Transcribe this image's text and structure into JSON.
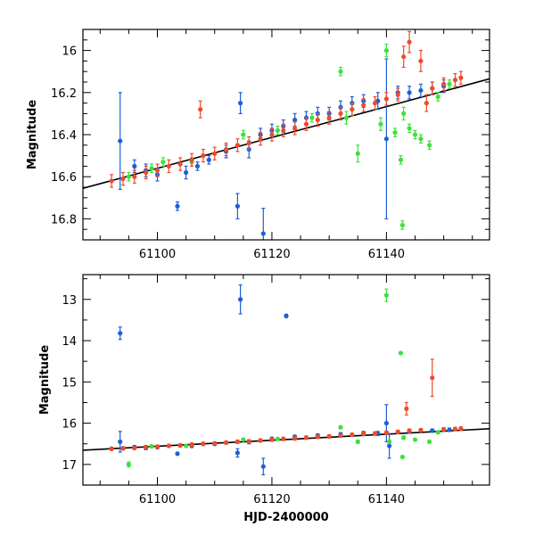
{
  "colors": {
    "blue": "#1f5fd6",
    "green": "#3ee03e",
    "red": "#ee4b2b",
    "trend": "#000000"
  },
  "chart_data": [
    {
      "type": "scatter",
      "title": "",
      "xlabel": "",
      "ylabel": "Magnitude",
      "xlim": [
        61087,
        61158
      ],
      "ylim": [
        16.9,
        15.9
      ],
      "xticks": [
        61100,
        61120,
        61140
      ],
      "xtick_labels": [
        "61100",
        "61120",
        "61140"
      ],
      "yticks": [
        16.0,
        16.2,
        16.4,
        16.6,
        16.8
      ],
      "ytick_labels": [
        "16",
        "16.2",
        "16.4",
        "16.6",
        "16.8"
      ],
      "trend": {
        "x": [
          61087,
          61158
        ],
        "y": [
          16.655,
          16.135
        ]
      },
      "series": [
        {
          "name": "blue",
          "color": "blue",
          "points": [
            [
              61093.5,
              16.43,
              0.23
            ],
            [
              61096,
              16.55,
              0.03
            ],
            [
              61098,
              16.57,
              0.03
            ],
            [
              61100,
              16.59,
              0.03
            ],
            [
              61103.5,
              16.74,
              0.02
            ],
            [
              61105,
              16.58,
              0.03
            ],
            [
              61107,
              16.55,
              0.02
            ],
            [
              61109,
              16.52,
              0.02
            ],
            [
              61112,
              16.48,
              0.03
            ],
            [
              61114,
              16.74,
              0.06
            ],
            [
              61114.5,
              16.25,
              0.05
            ],
            [
              61116,
              16.47,
              0.04
            ],
            [
              61118,
              16.4,
              0.03
            ],
            [
              61118.5,
              16.87,
              0.12
            ],
            [
              61120,
              16.38,
              0.03
            ],
            [
              61122,
              16.36,
              0.03
            ],
            [
              61124,
              16.33,
              0.03
            ],
            [
              61126,
              16.32,
              0.03
            ],
            [
              61128,
              16.3,
              0.03
            ],
            [
              61130,
              16.3,
              0.03
            ],
            [
              61132,
              16.27,
              0.03
            ],
            [
              61134,
              16.25,
              0.03
            ],
            [
              61136,
              16.24,
              0.03
            ],
            [
              61138.5,
              16.24,
              0.04
            ],
            [
              61140,
              16.42,
              0.38
            ],
            [
              61142,
              16.2,
              0.03
            ],
            [
              61144,
              16.2,
              0.03
            ],
            [
              61146,
              16.19,
              0.03
            ],
            [
              61148,
              16.18,
              0.03
            ],
            [
              61150,
              16.17,
              0.03
            ]
          ]
        },
        {
          "name": "green",
          "color": "green",
          "points": [
            [
              61095,
              16.6,
              0.02
            ],
            [
              61099,
              16.56,
              0.02
            ],
            [
              61101,
              16.53,
              0.02
            ],
            [
              61106,
              16.53,
              0.02
            ],
            [
              61115,
              16.4,
              0.02
            ],
            [
              61121,
              16.38,
              0.02
            ],
            [
              61127,
              16.32,
              0.02
            ],
            [
              61132,
              16.1,
              0.02
            ],
            [
              61133,
              16.32,
              0.03
            ],
            [
              61134,
              16.28,
              0.03
            ],
            [
              61135,
              16.49,
              0.04
            ],
            [
              61139,
              16.35,
              0.03
            ],
            [
              61140,
              16.0,
              0.03
            ],
            [
              61141.5,
              16.39,
              0.02
            ],
            [
              61142.5,
              16.52,
              0.02
            ],
            [
              61142.8,
              16.83,
              0.02
            ],
            [
              61143,
              16.3,
              0.03
            ],
            [
              61144,
              16.37,
              0.02
            ],
            [
              61145,
              16.4,
              0.02
            ],
            [
              61146,
              16.42,
              0.02
            ],
            [
              61147.5,
              16.45,
              0.02
            ],
            [
              61149,
              16.22,
              0.02
            ],
            [
              61151,
              16.16,
              0.02
            ]
          ]
        },
        {
          "name": "red",
          "color": "red",
          "points": [
            [
              61092,
              16.62,
              0.03
            ],
            [
              61094,
              16.61,
              0.03
            ],
            [
              61096,
              16.6,
              0.03
            ],
            [
              61098,
              16.58,
              0.03
            ],
            [
              61100,
              16.57,
              0.03
            ],
            [
              61102,
              16.55,
              0.03
            ],
            [
              61104,
              16.54,
              0.03
            ],
            [
              61106,
              16.52,
              0.03
            ],
            [
              61107.5,
              16.28,
              0.04
            ],
            [
              61108,
              16.5,
              0.03
            ],
            [
              61110,
              16.49,
              0.03
            ],
            [
              61112,
              16.47,
              0.03
            ],
            [
              61114,
              16.45,
              0.03
            ],
            [
              61116,
              16.44,
              0.03
            ],
            [
              61118,
              16.42,
              0.03
            ],
            [
              61120,
              16.4,
              0.03
            ],
            [
              61122,
              16.38,
              0.03
            ],
            [
              61124,
              16.37,
              0.03
            ],
            [
              61126,
              16.35,
              0.03
            ],
            [
              61128,
              16.33,
              0.03
            ],
            [
              61130,
              16.32,
              0.03
            ],
            [
              61132,
              16.3,
              0.03
            ],
            [
              61134,
              16.28,
              0.03
            ],
            [
              61136,
              16.26,
              0.03
            ],
            [
              61138,
              16.25,
              0.03
            ],
            [
              61140,
              16.23,
              0.03
            ],
            [
              61142,
              16.21,
              0.03
            ],
            [
              61143,
              16.03,
              0.05
            ],
            [
              61144,
              15.96,
              0.05
            ],
            [
              61146,
              16.05,
              0.05
            ],
            [
              61147,
              16.25,
              0.04
            ],
            [
              61148,
              16.18,
              0.03
            ],
            [
              61150,
              16.16,
              0.03
            ],
            [
              61152,
              16.14,
              0.03
            ],
            [
              61153,
              16.13,
              0.03
            ]
          ]
        }
      ]
    },
    {
      "type": "scatter",
      "title": "",
      "xlabel": "HJD-2400000",
      "ylabel": "Magnitude",
      "xlim": [
        61087,
        61158
      ],
      "ylim": [
        17.5,
        12.4
      ],
      "xticks": [
        61100,
        61120,
        61140
      ],
      "xtick_labels": [
        "61100",
        "61120",
        "61140"
      ],
      "yticks": [
        13,
        14,
        15,
        16,
        17
      ],
      "ytick_labels": [
        "13",
        "14",
        "15",
        "16",
        "17"
      ],
      "trend": {
        "x": [
          61087,
          61158
        ],
        "y": [
          16.655,
          16.135
        ]
      },
      "series": [
        {
          "name": "blue",
          "color": "blue",
          "points": [
            [
              61093.5,
              13.82,
              0.15
            ],
            [
              61093.5,
              16.45,
              0.25
            ],
            [
              61096,
              16.58,
              0.04
            ],
            [
              61098,
              16.6,
              0.04
            ],
            [
              61100,
              16.58,
              0.04
            ],
            [
              61103.5,
              16.74,
              0.03
            ],
            [
              61106,
              16.55,
              0.04
            ],
            [
              61110,
              16.5,
              0.04
            ],
            [
              61114,
              16.72,
              0.1
            ],
            [
              61114.5,
              13.0,
              0.35
            ],
            [
              61116,
              16.45,
              0.05
            ],
            [
              61118.5,
              17.05,
              0.2
            ],
            [
              61120,
              16.38,
              0.04
            ],
            [
              61122.5,
              13.4,
              0.04
            ],
            [
              61124,
              16.33,
              0.04
            ],
            [
              61128,
              16.3,
              0.04
            ],
            [
              61132,
              16.27,
              0.04
            ],
            [
              61136,
              16.24,
              0.04
            ],
            [
              61138.5,
              16.25,
              0.05
            ],
            [
              61140,
              16.0,
              0.45
            ],
            [
              61140.5,
              16.55,
              0.3
            ],
            [
              61144,
              16.2,
              0.04
            ],
            [
              61148,
              16.18,
              0.04
            ],
            [
              61151,
              16.16,
              0.04
            ]
          ]
        },
        {
          "name": "green",
          "color": "green",
          "points": [
            [
              61095,
              17.0,
              0.06
            ],
            [
              61099,
              16.56,
              0.03
            ],
            [
              61105,
              16.55,
              0.03
            ],
            [
              61115,
              16.4,
              0.03
            ],
            [
              61121,
              16.38,
              0.03
            ],
            [
              61132,
              16.1,
              0.03
            ],
            [
              61135,
              16.45,
              0.04
            ],
            [
              61140,
              12.9,
              0.15
            ],
            [
              61140.5,
              16.45,
              0.04
            ],
            [
              61142.5,
              14.3,
              0.03
            ],
            [
              61142.8,
              16.82,
              0.03
            ],
            [
              61143,
              16.35,
              0.04
            ],
            [
              61145,
              16.4,
              0.03
            ],
            [
              61147.5,
              16.45,
              0.03
            ],
            [
              61149,
              16.22,
              0.03
            ]
          ]
        },
        {
          "name": "red",
          "color": "red",
          "points": [
            [
              61092,
              16.62,
              0.04
            ],
            [
              61094,
              16.61,
              0.04
            ],
            [
              61096,
              16.6,
              0.04
            ],
            [
              61098,
              16.58,
              0.04
            ],
            [
              61100,
              16.57,
              0.04
            ],
            [
              61102,
              16.55,
              0.04
            ],
            [
              61104,
              16.54,
              0.04
            ],
            [
              61106,
              16.52,
              0.04
            ],
            [
              61108,
              16.5,
              0.04
            ],
            [
              61110,
              16.49,
              0.04
            ],
            [
              61112,
              16.47,
              0.04
            ],
            [
              61114,
              16.45,
              0.04
            ],
            [
              61116,
              16.44,
              0.04
            ],
            [
              61118,
              16.42,
              0.04
            ],
            [
              61120,
              16.4,
              0.04
            ],
            [
              61122,
              16.38,
              0.04
            ],
            [
              61124,
              16.37,
              0.04
            ],
            [
              61126,
              16.35,
              0.04
            ],
            [
              61128,
              16.33,
              0.04
            ],
            [
              61130,
              16.32,
              0.04
            ],
            [
              61132,
              16.3,
              0.04
            ],
            [
              61134,
              16.28,
              0.04
            ],
            [
              61136,
              16.26,
              0.04
            ],
            [
              61138,
              16.25,
              0.04
            ],
            [
              61140,
              16.23,
              0.04
            ],
            [
              61142,
              16.21,
              0.04
            ],
            [
              61143.5,
              15.65,
              0.15
            ],
            [
              61144,
              16.18,
              0.04
            ],
            [
              61146,
              16.17,
              0.04
            ],
            [
              61148,
              14.9,
              0.45
            ],
            [
              61150,
              16.15,
              0.04
            ],
            [
              61152,
              16.14,
              0.04
            ],
            [
              61153,
              16.13,
              0.04
            ]
          ]
        }
      ]
    }
  ]
}
